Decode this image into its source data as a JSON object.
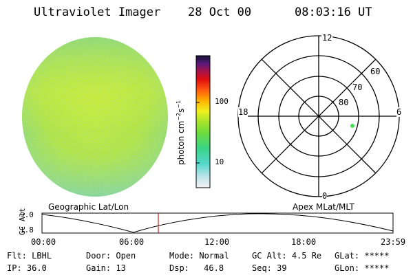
{
  "header": {
    "title": "Ultraviolet Imager",
    "date": "28 Oct 00",
    "time": "08:03:16 UT"
  },
  "colorbar": {
    "label": "photon cm",
    "label_sup1": "−2",
    "label_mid": "s",
    "label_sup2": "−1",
    "ticks": [
      "100",
      "10"
    ]
  },
  "polar_plot": {
    "mlt_labels": {
      "top": "12",
      "left": "18",
      "right": "6",
      "bottom": "0"
    },
    "lat_labels": [
      "60",
      "70",
      "80"
    ]
  },
  "orbit_panel": {
    "left_label": "Geographic Lat/Lon",
    "right_label": "Apex MLat/MLT",
    "axis_label": "GC Alt",
    "y_ticks": [
      "9.0",
      "1.8"
    ],
    "time_ticks": [
      "00:00",
      "06:00",
      "12:00",
      "18:00",
      "23:59"
    ]
  },
  "status": {
    "row1": [
      {
        "key": "Flt:",
        "value": "LBHL"
      },
      {
        "key": "Door:",
        "value": "Open"
      },
      {
        "key": "Mode:",
        "value": "Normal"
      },
      {
        "key": "GC Alt:",
        "value": "4.5 Re"
      },
      {
        "key": "GLat:",
        "value": "*****"
      }
    ],
    "row2": [
      {
        "key": "IP:",
        "value": "36.0"
      },
      {
        "key": "Gain:",
        "value": "13"
      },
      {
        "key": "Dsp:",
        "value": "46.8"
      },
      {
        "key": "Seq:",
        "value": "39"
      },
      {
        "key": "GLon:",
        "value": "*****"
      }
    ]
  },
  "colors": {
    "disk_base": "#b8e63a",
    "marker": "#44dd55",
    "time_cursor": "#cc2222"
  }
}
